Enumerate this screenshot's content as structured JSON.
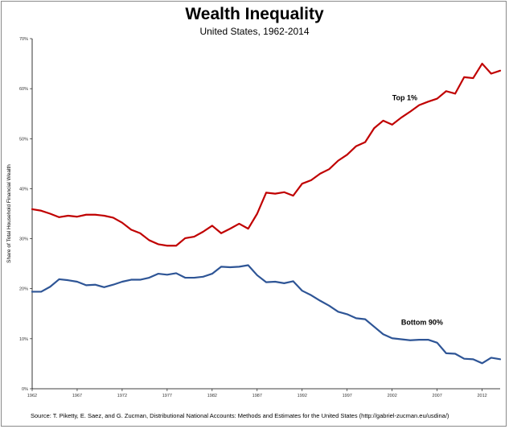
{
  "chart_data": {
    "type": "line",
    "title": "Wealth Inequality",
    "subtitle": "United States, 1962-2014",
    "ylabel": "Share of Total Household Financial Wealth",
    "xlabel": "",
    "xlim": [
      1962,
      2014
    ],
    "ylim": [
      0,
      70
    ],
    "yticks": [
      0,
      10,
      20,
      30,
      40,
      50,
      60,
      70
    ],
    "ytick_labels": [
      "0%",
      "10%",
      "20%",
      "30%",
      "40%",
      "50%",
      "60%",
      "70%"
    ],
    "xticks": [
      1962,
      1967,
      1972,
      1977,
      1982,
      1987,
      1992,
      1997,
      2002,
      2007,
      2012
    ],
    "xtick_labels": [
      "1962",
      "1967",
      "1972",
      "1977",
      "1982",
      "1987",
      "1992",
      "1997",
      "2002",
      "2007",
      "2012"
    ],
    "grid": false,
    "x": [
      1962,
      1963,
      1964,
      1965,
      1966,
      1967,
      1968,
      1969,
      1970,
      1971,
      1972,
      1973,
      1974,
      1975,
      1976,
      1977,
      1978,
      1979,
      1980,
      1981,
      1982,
      1983,
      1984,
      1985,
      1986,
      1987,
      1988,
      1989,
      1990,
      1991,
      1992,
      1993,
      1994,
      1995,
      1996,
      1997,
      1998,
      1999,
      2000,
      2001,
      2002,
      2003,
      2004,
      2005,
      2006,
      2007,
      2008,
      2009,
      2010,
      2011,
      2012,
      2013,
      2014
    ],
    "series": [
      {
        "name": "Top 1%",
        "color": "#c00000",
        "values": [
          35.9,
          35.6,
          35.0,
          34.3,
          34.6,
          34.4,
          34.8,
          34.8,
          34.6,
          34.2,
          33.2,
          31.8,
          31.1,
          29.7,
          28.9,
          28.6,
          28.6,
          30.1,
          30.4,
          31.4,
          32.6,
          31.1,
          32.0,
          33.0,
          32.0,
          35.0,
          39.2,
          39.0,
          39.3,
          38.6,
          41.0,
          41.7,
          43.0,
          43.9,
          45.6,
          46.8,
          48.5,
          49.3,
          52.1,
          53.6,
          52.8,
          54.2,
          55.4,
          56.7,
          57.4,
          58.0,
          59.5,
          59.0,
          62.3,
          62.1,
          65.0,
          63.0,
          63.6
        ]
      },
      {
        "name": "Bottom 90%",
        "color": "#2e5596",
        "values": [
          19.4,
          19.4,
          20.4,
          21.9,
          21.7,
          21.4,
          20.7,
          20.8,
          20.3,
          20.8,
          21.4,
          21.8,
          21.8,
          22.2,
          23.0,
          22.8,
          23.1,
          22.2,
          22.2,
          22.4,
          23.0,
          24.4,
          24.3,
          24.4,
          24.7,
          22.7,
          21.3,
          21.4,
          21.1,
          21.5,
          19.6,
          18.7,
          17.6,
          16.6,
          15.4,
          14.9,
          14.1,
          13.9,
          12.4,
          10.9,
          10.1,
          9.9,
          9.7,
          9.8,
          9.8,
          9.2,
          7.1,
          7.0,
          6.0,
          5.9,
          5.1,
          6.2,
          5.9
        ]
      }
    ],
    "annotations": [
      {
        "text": "Top 1%",
        "x": 2002,
        "y": 57.7
      },
      {
        "text": "Bottom 90%",
        "x": 2003,
        "y": 12.8
      }
    ],
    "source": "Source: T. Piketty, E. Saez, and G. Zucman,  Distributional National Accounts: Methods and Estimates for the United States (http://gabriel-zucman.eu/usdina/)"
  }
}
